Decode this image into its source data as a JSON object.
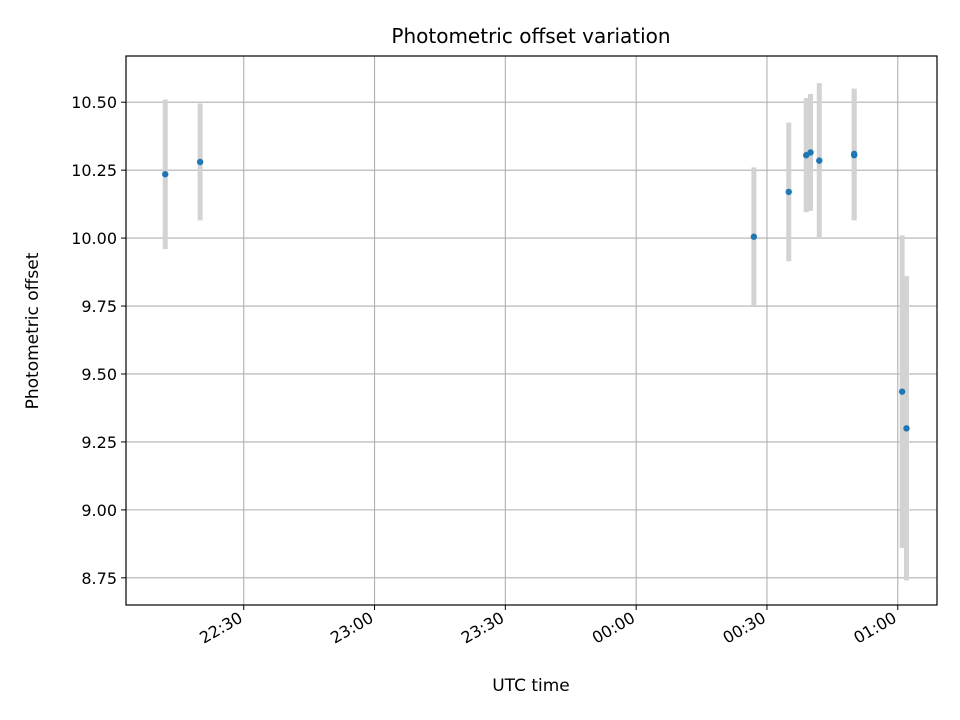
{
  "chart_data": {
    "type": "scatter",
    "title": "Photometric offset variation",
    "xlabel": "UTC time",
    "ylabel": "Photometric offset",
    "x_axis": "time",
    "xlim": [
      "22:03",
      "01:09"
    ],
    "ylim": [
      8.65,
      10.67
    ],
    "x_ticks": [
      "22:30",
      "23:00",
      "23:30",
      "00:00",
      "00:30",
      "01:00"
    ],
    "y_ticks": [
      "8.75",
      "9.00",
      "9.25",
      "9.50",
      "9.75",
      "10.00",
      "10.25",
      "10.50"
    ],
    "grid": true,
    "errorbar_color": "#d3d3d3",
    "marker_color": "#1f77b4",
    "points": [
      {
        "time": "22:12",
        "y": 10.235,
        "err": 0.275
      },
      {
        "time": "22:20",
        "y": 10.28,
        "err": 0.215
      },
      {
        "time": "00:27",
        "y": 10.005,
        "err": 0.255
      },
      {
        "time": "00:35",
        "y": 10.17,
        "err": 0.255
      },
      {
        "time": "00:39",
        "y": 10.305,
        "err": 0.21
      },
      {
        "time": "00:40",
        "y": 10.315,
        "err": 0.215
      },
      {
        "time": "00:42",
        "y": 10.285,
        "err": 0.285
      },
      {
        "time": "00:50",
        "y": 10.305,
        "err": 0.24
      },
      {
        "time": "00:50",
        "y": 10.31,
        "err": 0.24
      },
      {
        "time": "01:01",
        "y": 9.435,
        "err": 0.575
      },
      {
        "time": "01:02",
        "y": 9.3,
        "err": 0.56
      }
    ]
  }
}
